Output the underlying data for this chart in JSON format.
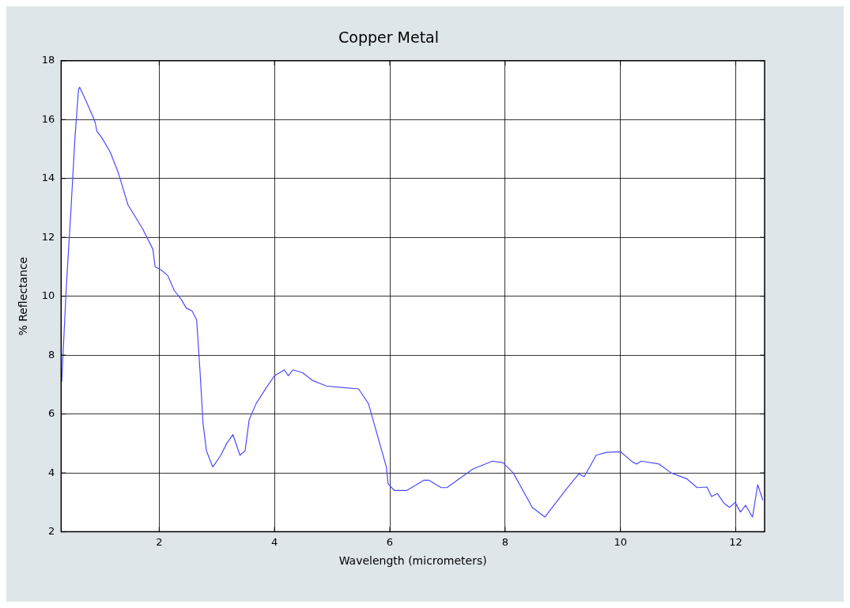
{
  "chart_data": {
    "type": "line",
    "title": "Copper Metal",
    "xlabel": "Wavelength (micrometers)",
    "ylabel": "% Reflectance",
    "x": [
      0.31,
      0.39,
      0.46,
      0.54,
      0.6,
      0.62,
      0.74,
      0.85,
      0.89,
      0.92,
      1.0,
      1.15,
      1.29,
      1.46,
      1.71,
      1.89,
      1.93,
      2.03,
      2.15,
      2.26,
      2.38,
      2.47,
      2.57,
      2.65,
      2.71,
      2.76,
      2.82,
      2.93,
      3.07,
      3.17,
      3.28,
      3.4,
      3.49,
      3.56,
      3.68,
      3.86,
      4.0,
      4.17,
      4.24,
      4.32,
      4.49,
      4.65,
      4.9,
      5.18,
      5.46,
      5.63,
      5.94,
      5.97,
      6.08,
      6.29,
      6.59,
      6.68,
      6.89,
      6.99,
      7.44,
      7.78,
      7.96,
      8.14,
      8.38,
      8.47,
      8.69,
      9.07,
      9.28,
      9.37,
      9.58,
      9.76,
      10.0,
      10.21,
      10.28,
      10.36,
      10.67,
      10.88,
      11.15,
      11.33,
      11.5,
      11.58,
      11.68,
      11.8,
      11.89,
      11.99,
      12.08,
      12.17,
      12.29,
      12.38,
      12.47
    ],
    "series": [
      {
        "color": "#4a4aff",
        "values": [
          7.1,
          10.35,
          12.6,
          15.4,
          17.0,
          17.1,
          16.6,
          16.1,
          15.9,
          15.6,
          15.4,
          14.9,
          14.2,
          13.1,
          12.3,
          11.6,
          11.0,
          10.9,
          10.7,
          10.2,
          9.9,
          9.6,
          9.5,
          9.2,
          7.4,
          5.7,
          4.75,
          4.2,
          4.6,
          5.0,
          5.3,
          4.6,
          4.75,
          5.8,
          6.35,
          6.9,
          7.3,
          7.5,
          7.3,
          7.5,
          7.4,
          7.15,
          6.95,
          6.9,
          6.85,
          6.35,
          4.2,
          3.63,
          3.4,
          3.4,
          3.75,
          3.75,
          3.5,
          3.5,
          4.13,
          4.4,
          4.35,
          4.0,
          3.15,
          2.83,
          2.5,
          3.47,
          3.97,
          3.87,
          4.6,
          4.7,
          4.72,
          4.37,
          4.3,
          4.4,
          4.3,
          4.0,
          3.8,
          3.5,
          3.52,
          3.2,
          3.3,
          2.96,
          2.83,
          3.0,
          2.67,
          2.9,
          2.5,
          3.6,
          3.07
        ]
      }
    ],
    "xlim": [
      0.3,
      12.5
    ],
    "xticks": [
      2,
      4,
      6,
      8,
      10,
      12
    ],
    "ylim": [
      2,
      18
    ],
    "yticks": [
      2,
      4,
      6,
      8,
      10,
      12,
      14,
      16,
      18
    ],
    "grid": true,
    "legend": false,
    "marker": "none",
    "line_style": "solid"
  }
}
